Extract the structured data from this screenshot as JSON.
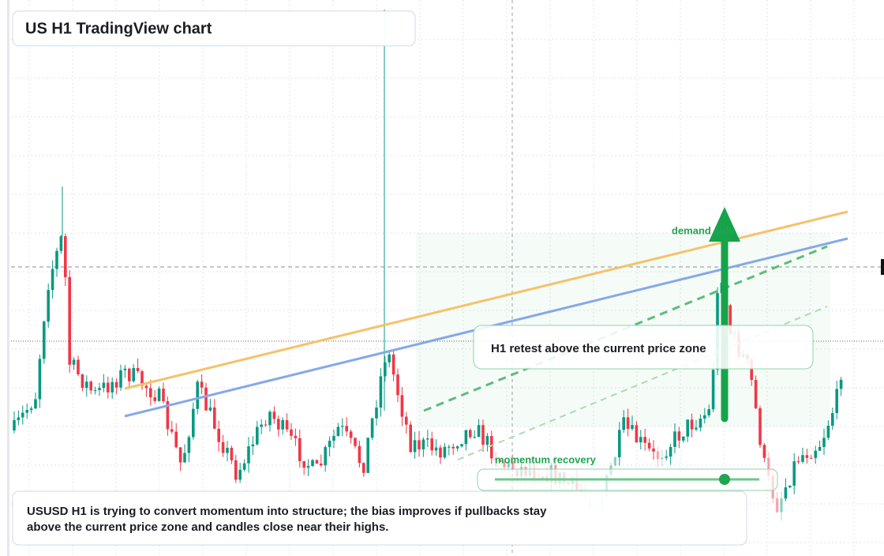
{
  "header": {
    "title": "US H1 TradingView chart"
  },
  "annotations": {
    "demand": "demand side",
    "retest": "H1 retest above the current price zone",
    "momentum": "momentum recovery"
  },
  "caption": {
    "lines": [
      "USUSD H1 is trying to convert momentum into structure; the bias improves if pullbacks stay",
      "above the current price zone and candles close near their highs."
    ]
  }
}
